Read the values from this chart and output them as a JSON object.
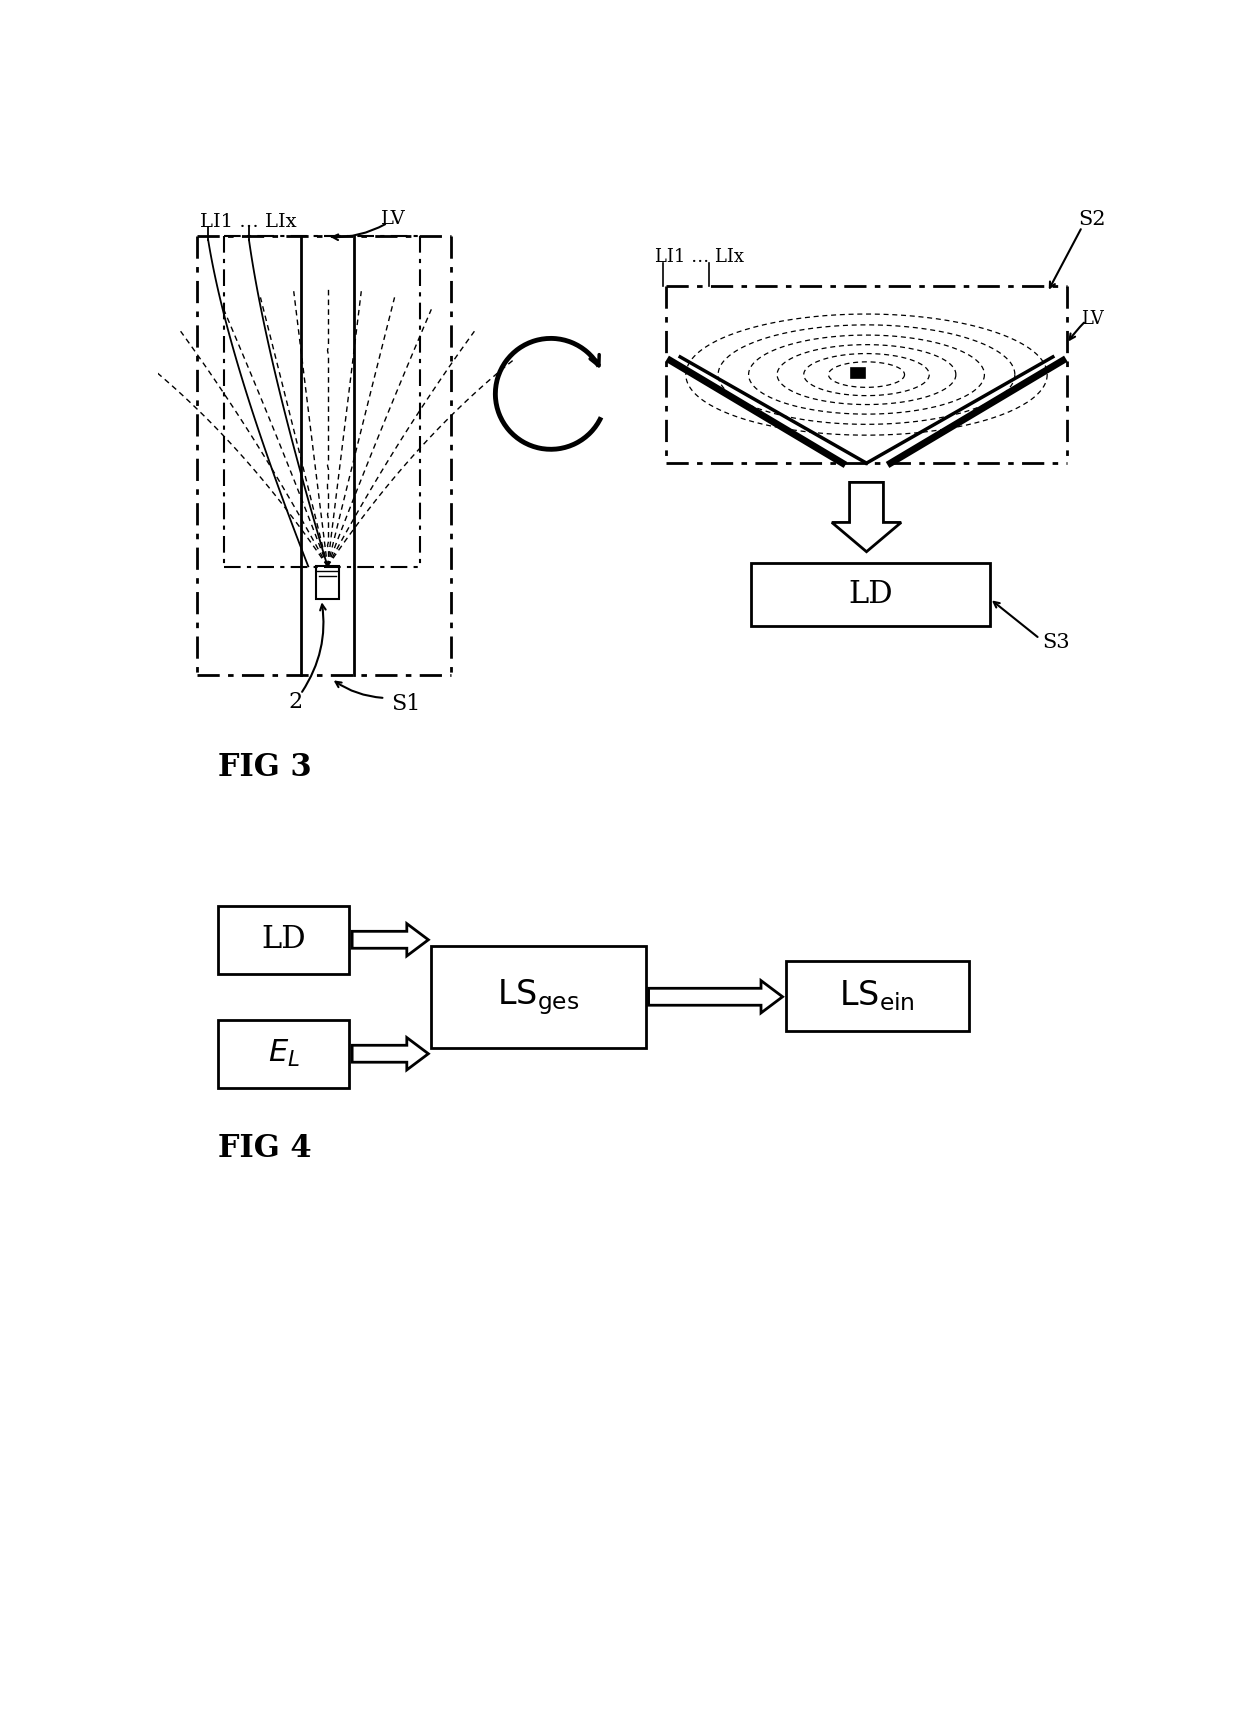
{
  "fig_width": 12.4,
  "fig_height": 17.1,
  "bg_color": "#ffffff",
  "fig3_title": "FIG 3",
  "fig4_title": "FIG 4",
  "labels": {
    "LI1_LIx": "LI1 … LIx",
    "LV": "LV",
    "S1": "S1",
    "S2": "S2",
    "S3": "S3",
    "num2": "2",
    "LD": "LD"
  }
}
